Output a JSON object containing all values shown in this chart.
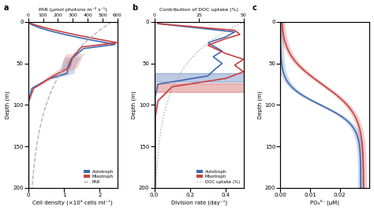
{
  "panel_a": {
    "title_top": "PAR (μmol photons m⁻² s⁻¹)",
    "xlabel": "Cell density (×10⁴ cells ml⁻¹)",
    "ylabel": "Depth (m)",
    "xlim_cells": [
      0,
      2.5
    ],
    "xlim_PAR": [
      0,
      600
    ],
    "ylim": [
      0,
      200
    ],
    "depth_ticks": [
      0,
      50,
      100,
      150,
      200
    ],
    "autotroph_color": "#4169b0",
    "mixotroph_color": "#c94040",
    "PAR_color": "#aaaaaa"
  },
  "panel_b": {
    "title_top": "Contribution of DOC uptake (%)",
    "xlabel": "Division rate (day⁻¹)",
    "ylabel": "Depth (m)",
    "xlim_div": [
      0,
      0.5
    ],
    "xlim_DOC": [
      0,
      50
    ],
    "ylim": [
      0,
      200
    ],
    "autotroph_color": "#4169b0",
    "mixotroph_color": "#c94040",
    "DOC_color": "#aaaaaa",
    "autotroph_band_depth": [
      62,
      72
    ],
    "mixotroph_band_depth": [
      74,
      84
    ]
  },
  "panel_c": {
    "xlabel": "PO₄³⁻ (μM)",
    "ylabel": "Depth (m)",
    "xlim": [
      0,
      0.03
    ],
    "ylim": [
      0,
      200
    ],
    "autotroph_color": "#4169b0",
    "mixotroph_color": "#c94040"
  }
}
